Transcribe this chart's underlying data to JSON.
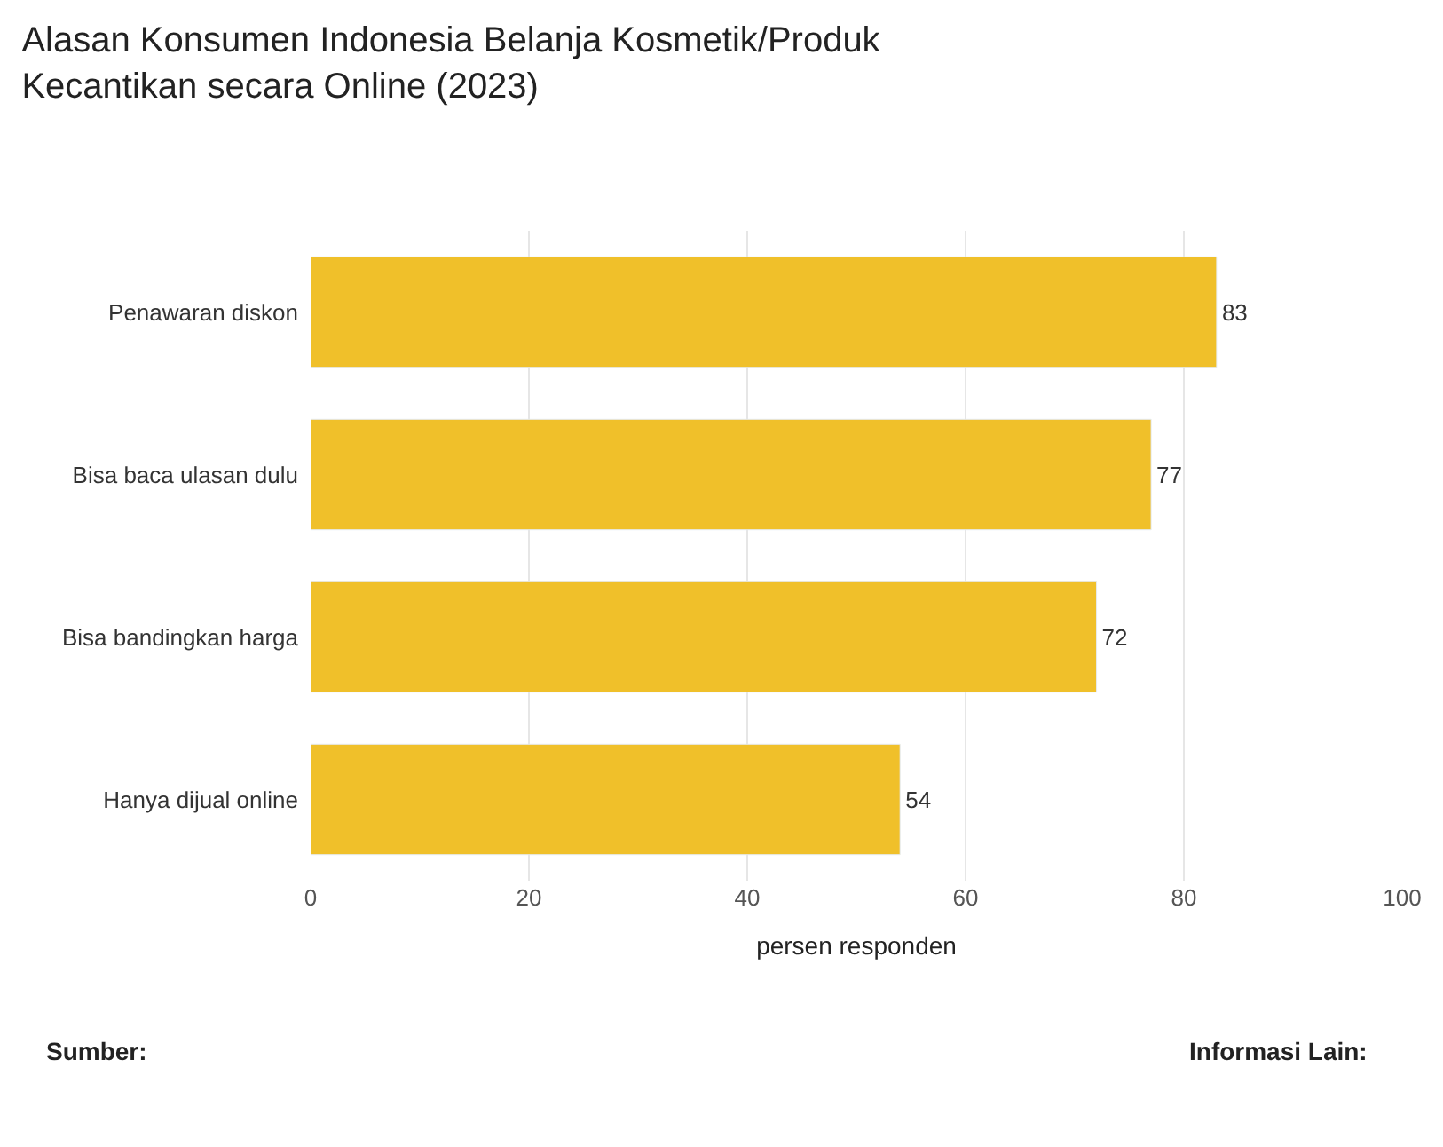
{
  "chart_data": {
    "type": "bar",
    "orientation": "horizontal",
    "title": "Alasan Konsumen Indonesia Belanja Kosmetik/Produk\nKecantikan secara Online (2023)",
    "categories": [
      "Penawaran diskon",
      "Bisa baca ulasan dulu",
      "Bisa bandingkan harga",
      "Hanya dijual online"
    ],
    "values": [
      83,
      77,
      72,
      54
    ],
    "color": "#f0c02a",
    "xlabel": "persen responden",
    "xlim": [
      0,
      100
    ],
    "xticks": [
      0,
      20,
      40,
      60,
      80,
      100
    ],
    "grid": "x",
    "data_labels": true,
    "annotations": [
      "Sumber:",
      "Informasi Lain:"
    ]
  }
}
